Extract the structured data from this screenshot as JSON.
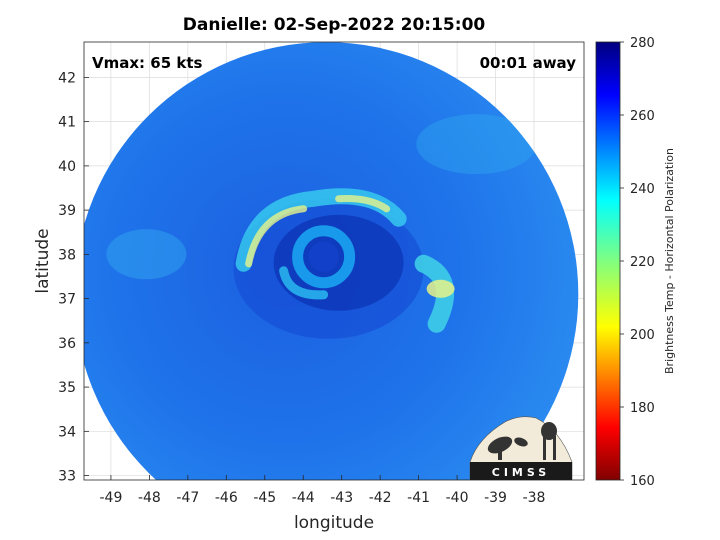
{
  "chart_data": {
    "type": "heatmap",
    "title": "Danielle: 02-Sep-2022 20:15:00",
    "xlabel": "longitude",
    "ylabel": "latitude",
    "xlim": [
      -49.7,
      -36.7
    ],
    "ylim": [
      32.9,
      42.8
    ],
    "x_ticks": [
      -49,
      -48,
      -47,
      -46,
      -45,
      -44,
      -43,
      -42,
      -41,
      -40,
      -39,
      -38
    ],
    "y_ticks": [
      33,
      34,
      35,
      36,
      37,
      38,
      39,
      40,
      41,
      42
    ],
    "grid": true,
    "annotations": {
      "vmax": "Vmax: 65 kts",
      "time_offset": "00:01 away"
    },
    "colorbar": {
      "label": "Brightness Temp - Horizontal Polarization",
      "range": [
        160,
        280
      ],
      "ticks": [
        160,
        180,
        200,
        220,
        240,
        260,
        280
      ],
      "colormap": "jet"
    },
    "storm_center": {
      "lon": -43.6,
      "lat": 37.9
    },
    "swath_center": {
      "lon": -43.4,
      "lat": 37.1
    }
  },
  "logo_text": "CIMSS",
  "colors": {
    "background_field": "#1e6fe8",
    "eyewall": "#1aa3f0",
    "rainband_warm": "#e6f28a",
    "core": "#0b2fb0"
  }
}
